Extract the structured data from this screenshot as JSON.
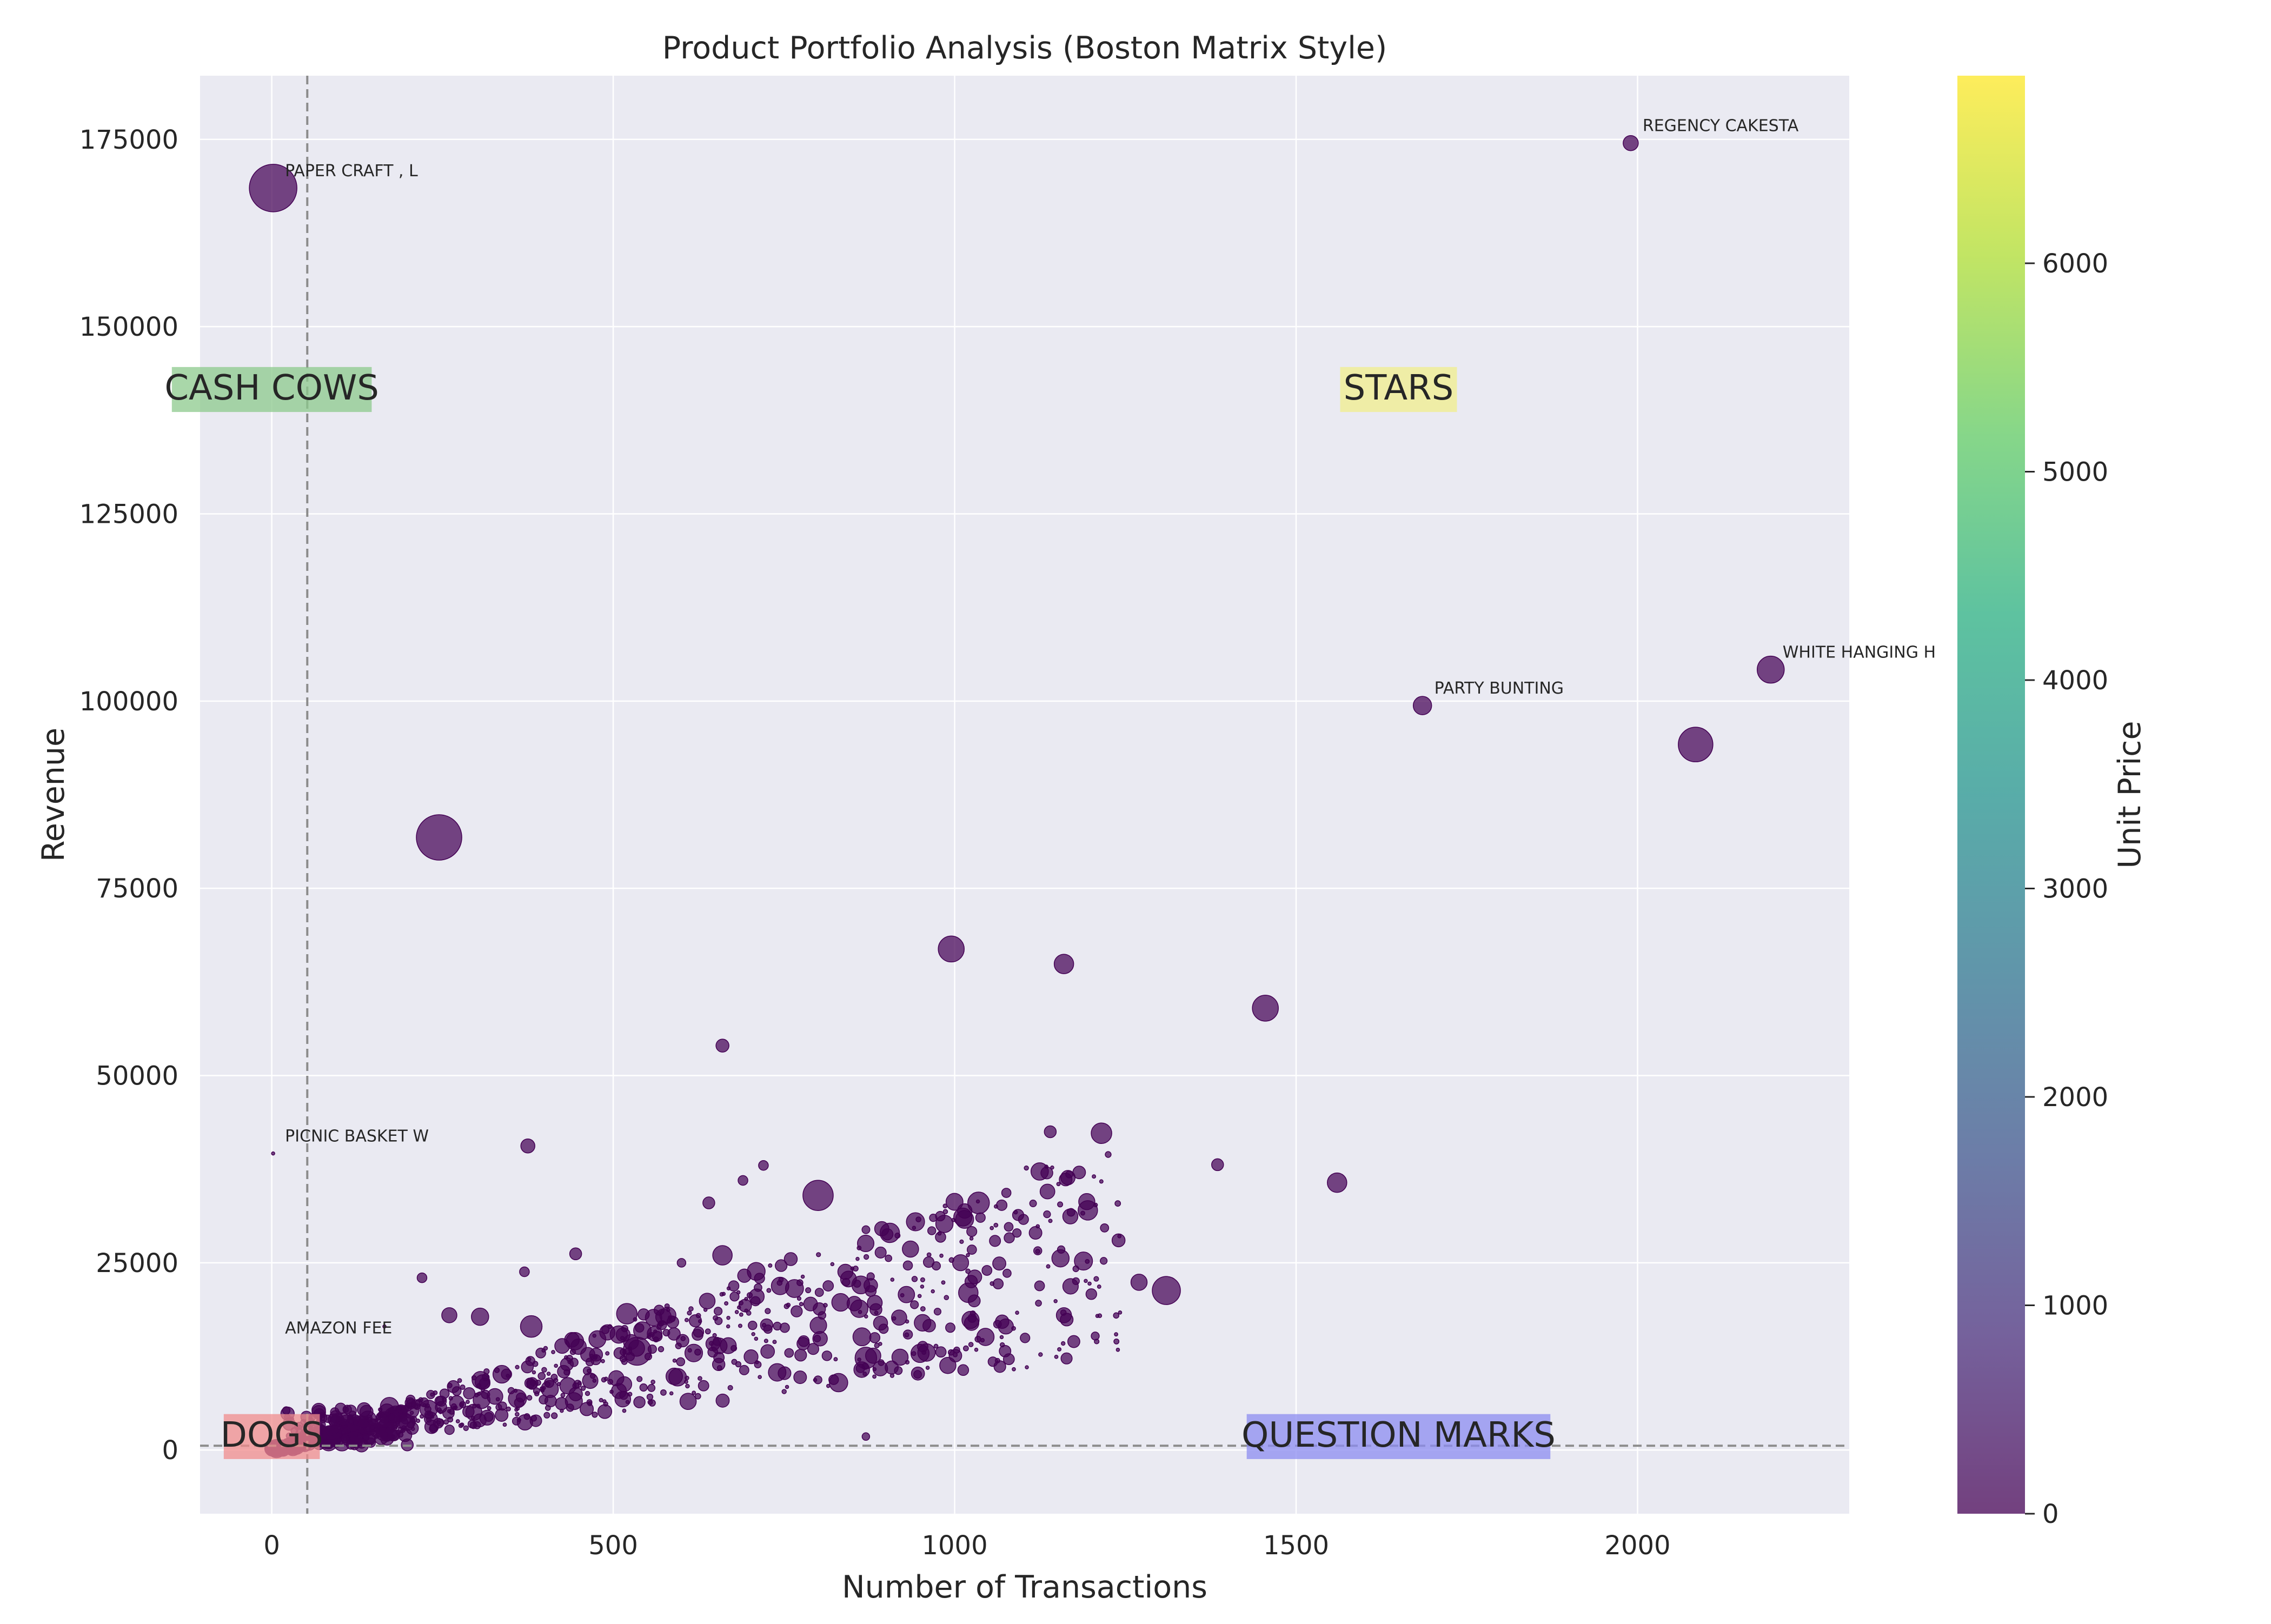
{
  "chart_data": {
    "type": "scatter",
    "title": "Product Portfolio Analysis (Boston Matrix Style)",
    "xlabel": "Number of Transactions",
    "ylabel": "Revenue",
    "xlim": [
      -105,
      2310
    ],
    "ylim": [
      -8500,
      183500
    ],
    "xticks": [
      0,
      500,
      1000,
      1500,
      2000
    ],
    "yticks": [
      0,
      25000,
      50000,
      75000,
      100000,
      125000,
      150000,
      175000
    ],
    "grid": true,
    "point_color": "#440154",
    "reference_lines": [
      {
        "axis": "x",
        "value": 52
      },
      {
        "axis": "y",
        "value": 580
      }
    ],
    "quadrant_labels": [
      {
        "text": "CASH COWS",
        "x": 0,
        "y": 141000,
        "color": "#8cc98c"
      },
      {
        "text": "STARS",
        "x": 1650,
        "y": 141000,
        "color": "#f0ee8c"
      },
      {
        "text": "DOGS",
        "x": 0,
        "y": 1200,
        "color": "#f08c8c"
      },
      {
        "text": "QUESTION MARKS",
        "x": 1650,
        "y": 1200,
        "color": "#8c8cf0"
      }
    ],
    "annotations": [
      {
        "text": "PAPER CRAFT , L",
        "x": 2,
        "y": 168500
      },
      {
        "text": "REGENCY CAKESTA",
        "x": 1990,
        "y": 174500
      },
      {
        "text": "WHITE HANGING H",
        "x": 2195,
        "y": 104200
      },
      {
        "text": "PARTY BUNTING",
        "x": 1685,
        "y": 99400
      },
      {
        "text": "PICNIC BASKET W",
        "x": 2,
        "y": 39600
      },
      {
        "text": "AMAZON FEE",
        "x": 2,
        "y": 14000
      }
    ],
    "colorbar": {
      "label": "Unit Price",
      "min": 0,
      "max": 6900,
      "ticks": [
        0,
        1000,
        2000,
        3000,
        4000,
        5000,
        6000
      ],
      "colormap": "viridis"
    },
    "size_note": "marker size scales with quantity",
    "points": [
      {
        "x": 2,
        "y": 168500,
        "s": 44
      },
      {
        "x": 1990,
        "y": 174500,
        "s": 14
      },
      {
        "x": 2195,
        "y": 104200,
        "s": 25
      },
      {
        "x": 1685,
        "y": 99400,
        "s": 17
      },
      {
        "x": 2085,
        "y": 94200,
        "s": 32
      },
      {
        "x": 245,
        "y": 81800,
        "s": 42
      },
      {
        "x": 995,
        "y": 66900,
        "s": 24
      },
      {
        "x": 1160,
        "y": 64900,
        "s": 18
      },
      {
        "x": 1455,
        "y": 59000,
        "s": 24
      },
      {
        "x": 660,
        "y": 54000,
        "s": 12
      },
      {
        "x": 375,
        "y": 40600,
        "s": 13
      },
      {
        "x": 2,
        "y": 39600,
        "s": 3
      },
      {
        "x": 1215,
        "y": 42300,
        "s": 19
      },
      {
        "x": 1140,
        "y": 42500,
        "s": 11
      },
      {
        "x": 1385,
        "y": 38100,
        "s": 11
      },
      {
        "x": 1560,
        "y": 35700,
        "s": 18
      },
      {
        "x": 1135,
        "y": 37000,
        "s": 11
      },
      {
        "x": 800,
        "y": 34000,
        "s": 28
      },
      {
        "x": 1035,
        "y": 33000,
        "s": 20
      },
      {
        "x": 1195,
        "y": 32000,
        "s": 18
      },
      {
        "x": 720,
        "y": 38000,
        "s": 9
      },
      {
        "x": 690,
        "y": 36000,
        "s": 9
      },
      {
        "x": 985,
        "y": 30200,
        "s": 16
      },
      {
        "x": 905,
        "y": 29000,
        "s": 18
      },
      {
        "x": 1310,
        "y": 21300,
        "s": 26
      },
      {
        "x": 1270,
        "y": 22400,
        "s": 15
      },
      {
        "x": 1155,
        "y": 25600,
        "s": 16
      },
      {
        "x": 1160,
        "y": 18000,
        "s": 14
      },
      {
        "x": 1075,
        "y": 16500,
        "s": 14
      },
      {
        "x": 1020,
        "y": 21000,
        "s": 18
      },
      {
        "x": 870,
        "y": 12300,
        "s": 20
      },
      {
        "x": 830,
        "y": 9000,
        "s": 17
      },
      {
        "x": 990,
        "y": 11300,
        "s": 15
      },
      {
        "x": 920,
        "y": 12400,
        "s": 15
      },
      {
        "x": 660,
        "y": 26000,
        "s": 18
      },
      {
        "x": 600,
        "y": 25000,
        "s": 8
      },
      {
        "x": 760,
        "y": 25500,
        "s": 12
      },
      {
        "x": 580,
        "y": 18000,
        "s": 15
      },
      {
        "x": 520,
        "y": 18200,
        "s": 19
      },
      {
        "x": 535,
        "y": 13200,
        "s": 26
      },
      {
        "x": 380,
        "y": 16500,
        "s": 20
      },
      {
        "x": 305,
        "y": 17800,
        "s": 16
      },
      {
        "x": 260,
        "y": 18000,
        "s": 14
      },
      {
        "x": 445,
        "y": 26200,
        "s": 11
      },
      {
        "x": 370,
        "y": 23800,
        "s": 9
      },
      {
        "x": 220,
        "y": 23000,
        "s": 9
      },
      {
        "x": 870,
        "y": 1800,
        "s": 7
      },
      {
        "x": 35,
        "y": 700,
        "s": 18
      },
      {
        "x": 165,
        "y": 16500,
        "s": 3
      },
      {
        "x": 1240,
        "y": 28000,
        "s": 12
      },
      {
        "x": 640,
        "y": 33000,
        "s": 11
      },
      {
        "x": 840,
        "y": 23800,
        "s": 14
      },
      {
        "x": 710,
        "y": 20500,
        "s": 14
      }
    ],
    "point_scatter_seed": 7
  }
}
